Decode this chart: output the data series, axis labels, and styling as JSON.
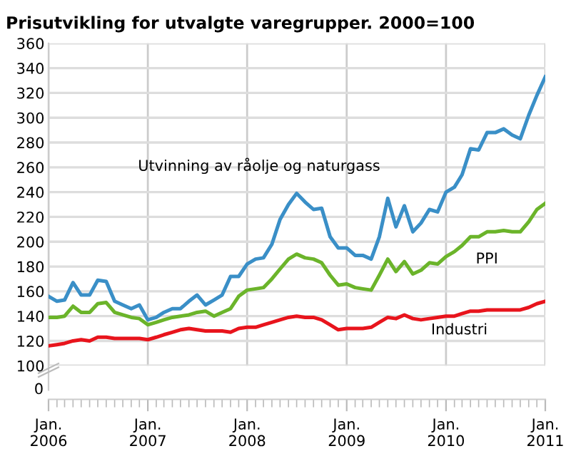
{
  "chart_data": {
    "type": "line",
    "title": "Prisutvikling for utvalgte varegrupper. 2000=100",
    "x": [
      "2006-01",
      "2006-02",
      "2006-03",
      "2006-04",
      "2006-05",
      "2006-06",
      "2006-07",
      "2006-08",
      "2006-09",
      "2006-10",
      "2006-11",
      "2006-12",
      "2007-01",
      "2007-02",
      "2007-03",
      "2007-04",
      "2007-05",
      "2007-06",
      "2007-07",
      "2007-08",
      "2007-09",
      "2007-10",
      "2007-11",
      "2007-12",
      "2008-01",
      "2008-02",
      "2008-03",
      "2008-04",
      "2008-05",
      "2008-06",
      "2008-07",
      "2008-08",
      "2008-09",
      "2008-10",
      "2008-11",
      "2008-12",
      "2009-01",
      "2009-02",
      "2009-03",
      "2009-04",
      "2009-05",
      "2009-06",
      "2009-07",
      "2009-08",
      "2009-09",
      "2009-10",
      "2009-11",
      "2009-12",
      "2010-01",
      "2010-02",
      "2010-03",
      "2010-04",
      "2010-05",
      "2010-06",
      "2010-07",
      "2010-08",
      "2010-09",
      "2010-10",
      "2010-11",
      "2010-12",
      "2011-01"
    ],
    "series": [
      {
        "name": "Utvinning av råolje og naturgass",
        "color": "#3a8fc7",
        "values": [
          156,
          152,
          153,
          167,
          157,
          157,
          169,
          168,
          152,
          149,
          146,
          149,
          137,
          139,
          143,
          146,
          146,
          152,
          157,
          149,
          153,
          157,
          172,
          172,
          182,
          186,
          187,
          198,
          218,
          230,
          239,
          232,
          226,
          227,
          204,
          195,
          195,
          189,
          189,
          186,
          204,
          235,
          212,
          229,
          208,
          215,
          226,
          224,
          240,
          244,
          254,
          275,
          274,
          288,
          288,
          291,
          286,
          283,
          302,
          318,
          333
        ]
      },
      {
        "name": "PPI",
        "color": "#6bb42a",
        "values": [
          139,
          139,
          140,
          148,
          143,
          143,
          150,
          151,
          143,
          141,
          139,
          138,
          133,
          135,
          137,
          139,
          140,
          141,
          143,
          144,
          140,
          143,
          146,
          156,
          161,
          162,
          163,
          170,
          178,
          186,
          190,
          187,
          186,
          183,
          173,
          165,
          166,
          163,
          162,
          161,
          173,
          186,
          176,
          184,
          174,
          177,
          183,
          182,
          188,
          192,
          197,
          204,
          204,
          208,
          208,
          209,
          208,
          208,
          216,
          226,
          231
        ]
      },
      {
        "name": "Industri",
        "color": "#e8141c",
        "values": [
          116,
          117,
          118,
          120,
          121,
          120,
          123,
          123,
          122,
          122,
          122,
          122,
          121,
          123,
          125,
          127,
          129,
          130,
          129,
          128,
          128,
          128,
          127,
          130,
          131,
          131,
          133,
          135,
          137,
          139,
          140,
          139,
          139,
          137,
          133,
          129,
          130,
          130,
          130,
          131,
          135,
          139,
          138,
          141,
          138,
          137,
          138,
          139,
          140,
          140,
          142,
          144,
          144,
          145,
          145,
          145,
          145,
          145,
          147,
          150,
          152
        ]
      }
    ],
    "xlim": [
      "2006-01",
      "2011-01"
    ],
    "xticks": [
      {
        "value": "2006-01",
        "label": "Jan.\n2006"
      },
      {
        "value": "2007-01",
        "label": "Jan.\n2007"
      },
      {
        "value": "2008-01",
        "label": "Jan.\n2008"
      },
      {
        "value": "2009-01",
        "label": "Jan.\n2009"
      },
      {
        "value": "2010-01",
        "label": "Jan.\n2010"
      },
      {
        "value": "2011-01",
        "label": "Jan.\n2011"
      }
    ],
    "annotations": [
      "0"
    ],
    "ylim": [
      100,
      360
    ],
    "yticks": [
      100,
      120,
      140,
      160,
      180,
      200,
      220,
      240,
      260,
      280,
      300,
      320,
      340,
      360
    ],
    "grid": true,
    "legend": false,
    "marker": "none",
    "line_style": "solid"
  }
}
